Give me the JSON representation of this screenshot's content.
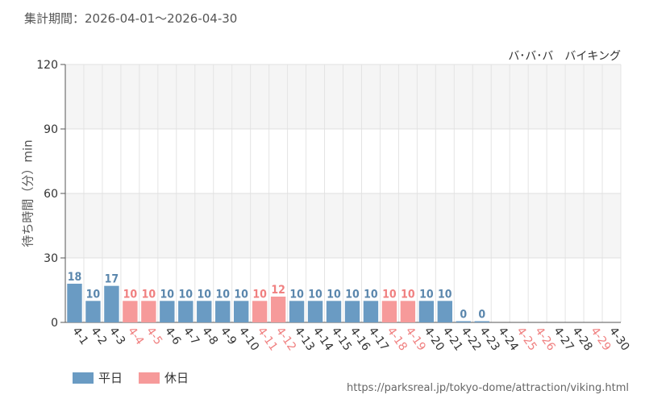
{
  "period_label": "集計期間：2026-04-01～2026-04-30",
  "attraction": "バ･バ･バ　バイキング",
  "source_url": "https://parksreal.jp/tokyo-dome/attraction/viking.html",
  "colors": {
    "weekday": "#6a9bc3",
    "holiday": "#f69a9a",
    "weekday_text": "#5b87ad",
    "holiday_text": "#f08080"
  },
  "chart_data": {
    "type": "bar",
    "ylabel": "待ち時間（分）min",
    "ylim": [
      0,
      120
    ],
    "yticks": [
      0,
      30,
      60,
      90,
      120
    ],
    "grid": true,
    "legend_position": "bottom-left",
    "legend": [
      {
        "key": "weekday",
        "label": "平日"
      },
      {
        "key": "holiday",
        "label": "休日"
      }
    ],
    "categories": [
      "4-1",
      "4-2",
      "4-3",
      "4-4",
      "4-5",
      "4-6",
      "4-7",
      "4-8",
      "4-9",
      "4-10",
      "4-11",
      "4-12",
      "4-13",
      "4-14",
      "4-15",
      "4-16",
      "4-17",
      "4-18",
      "4-19",
      "4-20",
      "4-21",
      "4-22",
      "4-23",
      "4-24",
      "4-25",
      "4-26",
      "4-27",
      "4-28",
      "4-29",
      "4-30"
    ],
    "values": [
      18,
      10,
      17,
      10,
      10,
      10,
      10,
      10,
      10,
      10,
      10,
      12,
      10,
      10,
      10,
      10,
      10,
      10,
      10,
      10,
      10,
      0,
      0,
      null,
      null,
      null,
      null,
      null,
      null,
      null
    ],
    "day_type": [
      "weekday",
      "weekday",
      "weekday",
      "holiday",
      "holiday",
      "weekday",
      "weekday",
      "weekday",
      "weekday",
      "weekday",
      "holiday",
      "holiday",
      "weekday",
      "weekday",
      "weekday",
      "weekday",
      "weekday",
      "holiday",
      "holiday",
      "weekday",
      "weekday",
      "weekday",
      "weekday",
      "weekday",
      "holiday",
      "holiday",
      "weekday",
      "weekday",
      "holiday",
      "weekday"
    ]
  }
}
